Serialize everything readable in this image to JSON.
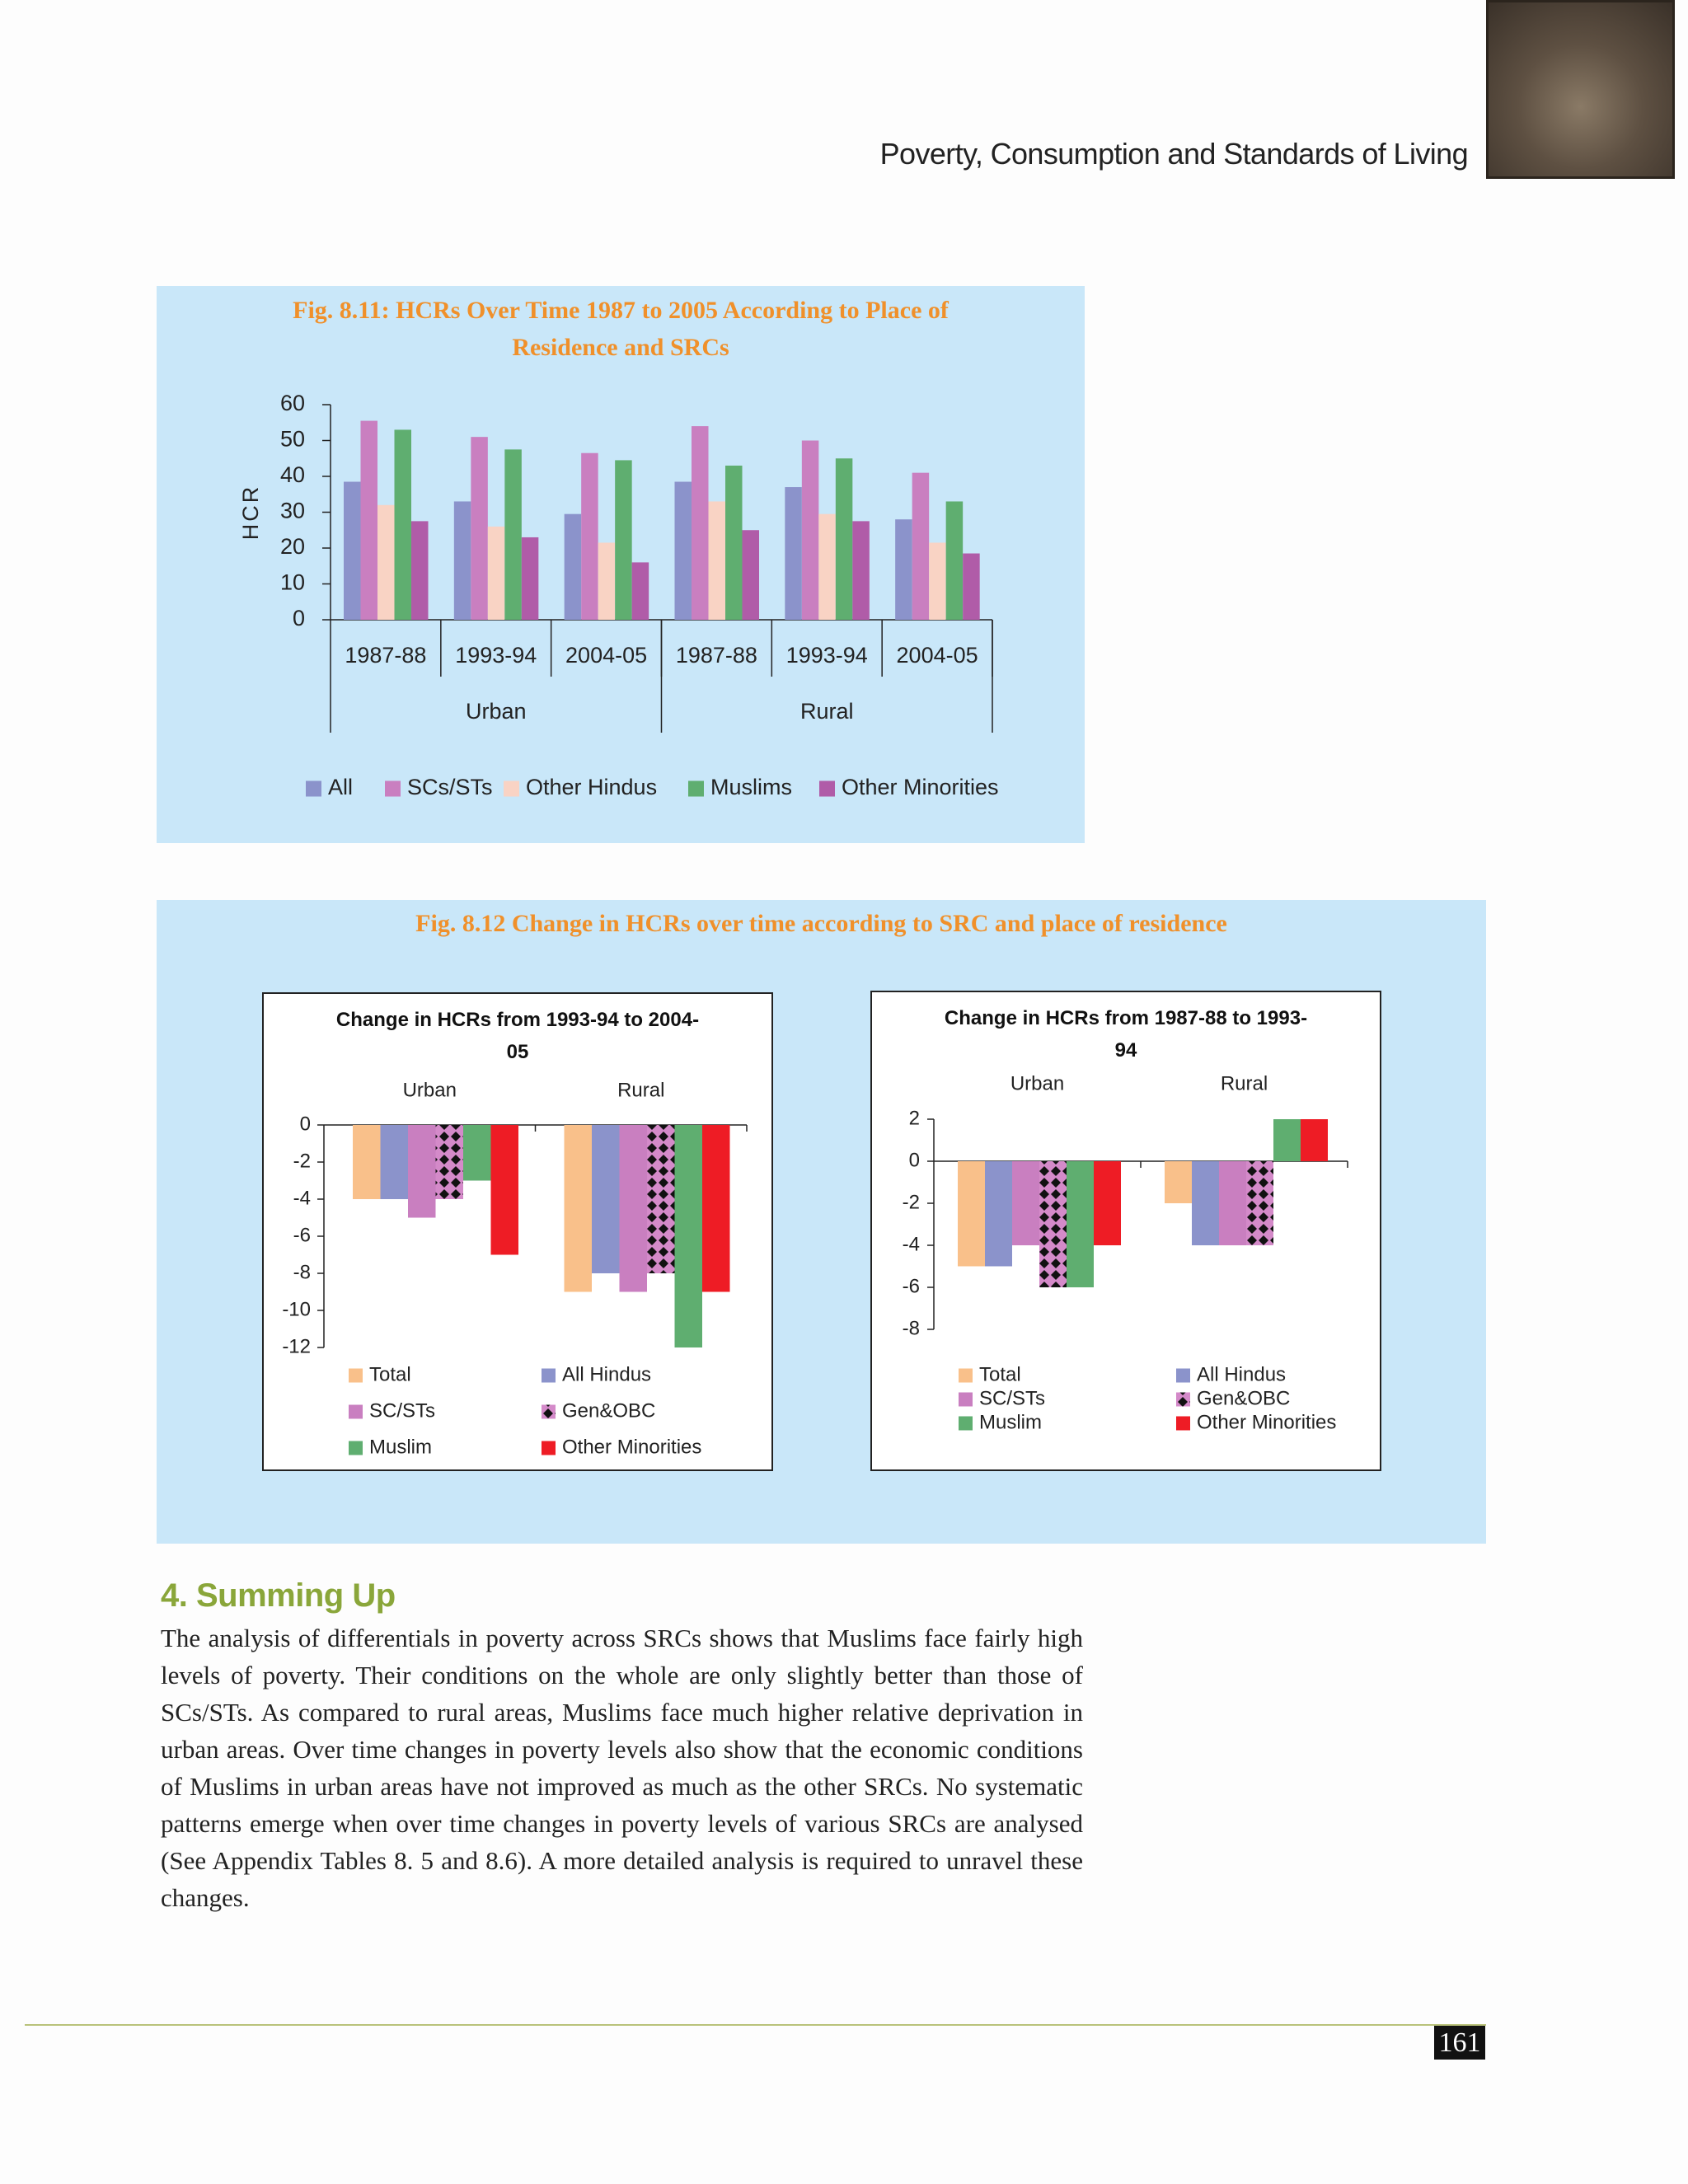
{
  "header": {
    "running_title": "Poverty, Consumption and Standards of Living"
  },
  "chart_data": [
    {
      "type": "bar",
      "title": "Fig. 8.11: HCRs Over Time 1987 to 2005 According to Place of Residence and SRCs",
      "ylabel": "HCR",
      "categories": [
        "1987-88",
        "1993-94",
        "2004-05",
        "1987-88",
        "1993-94",
        "2004-05"
      ],
      "groups": [
        "Urban",
        "Rural"
      ],
      "ylim": [
        0,
        60
      ],
      "yticks": [
        0,
        10,
        20,
        30,
        40,
        50,
        60
      ],
      "grid": false,
      "legend": "bottom",
      "series": [
        {
          "name": "All",
          "color": "#8b93cb",
          "values": [
            38.5,
            33,
            29.5,
            38.5,
            37,
            28
          ]
        },
        {
          "name": "SCs/STs",
          "color": "#c97fc0",
          "values": [
            55.5,
            51,
            46.5,
            54,
            50,
            41
          ]
        },
        {
          "name": "Other Hindus",
          "color": "#f9d3c4",
          "values": [
            32,
            26,
            21.5,
            33,
            29.5,
            21.5
          ]
        },
        {
          "name": "Muslims",
          "color": "#5fae70",
          "values": [
            53,
            47.5,
            44.5,
            43,
            45,
            33
          ]
        },
        {
          "name": "Other Minorities",
          "color": "#b05ca8",
          "values": [
            27.5,
            23,
            16,
            25,
            27.5,
            18.5
          ]
        }
      ]
    },
    {
      "type": "bar",
      "title": "Change in HCRs from 1993-94 to 2004-05",
      "categories": [
        "Urban",
        "Rural"
      ],
      "ylim": [
        -12,
        0
      ],
      "yticks": [
        -12,
        -10,
        -8,
        -6,
        -4,
        -2,
        0
      ],
      "grid": false,
      "legend": "bottom",
      "series": [
        {
          "name": "Total",
          "color": "#f9c08a",
          "values": [
            -4,
            -9
          ]
        },
        {
          "name": "All Hindus",
          "color": "#8b93cb",
          "values": [
            -4,
            -8
          ]
        },
        {
          "name": "SC/STs",
          "color": "#c97fc0",
          "values": [
            -5,
            -9
          ]
        },
        {
          "name": "Gen&OBC",
          "color": "#c97fc0",
          "pattern": "diamond",
          "values": [
            -4,
            -8
          ]
        },
        {
          "name": "Muslim",
          "color": "#5fae70",
          "values": [
            -3,
            -12
          ]
        },
        {
          "name": "Other Minorities",
          "color": "#ee1c25",
          "values": [
            -7,
            -9
          ]
        }
      ]
    },
    {
      "type": "bar",
      "title": "Change in HCRs from 1987-88 to 1993-94",
      "categories": [
        "Urban",
        "Rural"
      ],
      "ylim": [
        -8,
        2
      ],
      "yticks": [
        -8,
        -6,
        -4,
        -2,
        0,
        2
      ],
      "grid": false,
      "legend": "bottom",
      "series": [
        {
          "name": "Total",
          "color": "#f9c08a",
          "values": [
            -5,
            -2
          ]
        },
        {
          "name": "All Hindus",
          "color": "#8b93cb",
          "values": [
            -5,
            -4
          ]
        },
        {
          "name": "SC/STs",
          "color": "#c97fc0",
          "values": [
            -4,
            -4
          ]
        },
        {
          "name": "Gen&OBC",
          "color": "#c97fc0",
          "pattern": "diamond",
          "values": [
            -6,
            -4
          ]
        },
        {
          "name": "Muslim",
          "color": "#5fae70",
          "values": [
            -6,
            2
          ]
        },
        {
          "name": "Other Minorities",
          "color": "#ee1c25",
          "values": [
            -4,
            2
          ]
        }
      ]
    }
  ],
  "figure_title": "Fig. 8.12 Change in HCRs over time according to SRC and place of residence",
  "section": {
    "heading": "4. Summing Up",
    "paragraph": "The analysis of differentials in poverty across SRCs shows that Muslims face fairly high levels of poverty. Their conditions on the whole are only slightly better than those of SCs/STs. As compared to rural areas, Muslims face much higher relative deprivation in urban areas. Over time changes in poverty levels also show that the economic conditions of Muslims in urban areas have not improved as much as the other SRCs. No systematic patterns emerge when over time changes in poverty levels of various SRCs are analysed (See Appendix Tables 8. 5 and 8.6). A more detailed analysis is required to unravel these changes."
  },
  "page_number": "161"
}
